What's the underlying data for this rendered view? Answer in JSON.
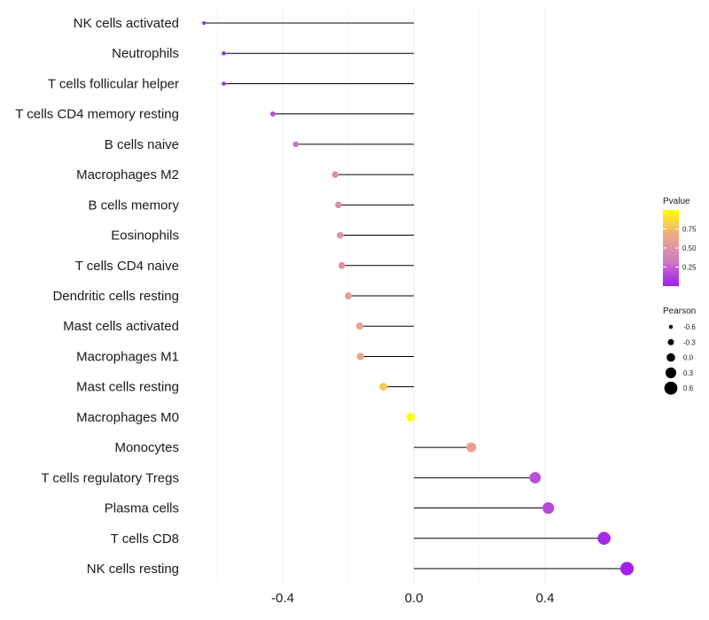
{
  "chart_data": {
    "type": "lollipop",
    "title": "",
    "xlabel": "",
    "ylabel": "",
    "xlim": [
      -0.65,
      0.66
    ],
    "x_ticks": [
      -0.4,
      0.0,
      0.4
    ],
    "x_tick_labels": [
      "-0.4",
      "0.0",
      "0.4"
    ],
    "categories": [
      "NK cells activated",
      "Neutrophils",
      "T cells follicular helper",
      "T cells CD4 memory resting",
      "B cells naive",
      "Macrophages M2",
      "B cells memory",
      "Eosinophils",
      "T cells CD4 naive",
      "Dendritic cells resting",
      "Mast cells activated",
      "Macrophages M1",
      "Mast cells resting",
      "Macrophages M0",
      "Monocytes",
      "T cells regulatory  Tregs",
      "Plasma cells",
      "T cells CD8",
      "NK cells resting"
    ],
    "pearson": [
      -0.64,
      -0.58,
      -0.58,
      -0.43,
      -0.36,
      -0.24,
      -0.23,
      -0.225,
      -0.22,
      -0.2,
      -0.165,
      -0.163,
      -0.093,
      -0.01,
      0.175,
      0.37,
      0.41,
      0.58,
      0.65
    ],
    "pvalue": [
      0.02,
      0.05,
      0.05,
      0.18,
      0.3,
      0.45,
      0.48,
      0.5,
      0.5,
      0.55,
      0.62,
      0.62,
      0.8,
      1.0,
      0.6,
      0.18,
      0.15,
      0.04,
      0.02
    ],
    "color_legend": {
      "title": "Pvalue",
      "ticks": [
        0.25,
        0.5,
        0.75
      ],
      "tick_labels": [
        "0.25",
        "0.50",
        "0.75"
      ],
      "range": [
        0.0,
        1.0
      ],
      "colors": [
        "#9f1df0",
        "#d27fc0",
        "#f0b07a",
        "#ffff00"
      ]
    },
    "size_legend": {
      "title": "Pearson",
      "values": [
        -0.6,
        -0.3,
        0.0,
        0.3,
        0.6
      ],
      "labels": [
        "-0.6",
        "-0.3",
        "0.0",
        "0.3",
        "0.6"
      ]
    }
  }
}
